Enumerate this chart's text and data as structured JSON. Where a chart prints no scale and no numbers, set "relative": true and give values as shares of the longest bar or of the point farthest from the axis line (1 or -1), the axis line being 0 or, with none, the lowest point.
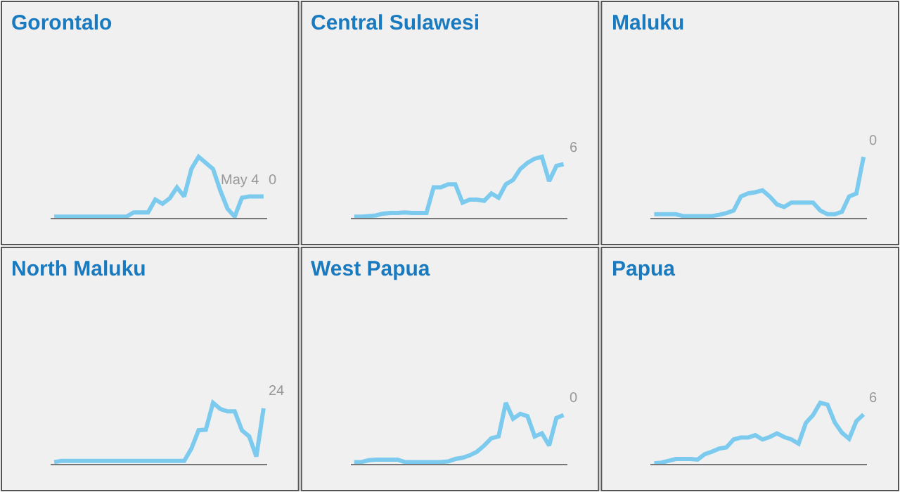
{
  "chart_data": [
    {
      "type": "line",
      "title": "Gorontalo",
      "relative": true,
      "categories": [
        null,
        null,
        null,
        null,
        null,
        null,
        null,
        null,
        null,
        null,
        null,
        null,
        null,
        null,
        null,
        null,
        null,
        null,
        null,
        null,
        null,
        null,
        null,
        null,
        null,
        null,
        null,
        null,
        null,
        null
      ],
      "annotations": [
        "May 4",
        "0"
      ],
      "series": [
        {
          "color": "#7ccbee",
          "values": [
            0.02,
            0.02,
            0.02,
            0.02,
            0.02,
            0.02,
            0.02,
            0.02,
            0.02,
            0.02,
            0.02,
            0.09,
            0.09,
            0.09,
            0.3,
            0.23,
            0.32,
            0.5,
            0.35,
            0.8,
            1,
            0.9,
            0.8,
            0.45,
            0.15,
            0.02,
            0.33,
            0.35,
            0.35,
            0.35
          ]
        }
      ]
    },
    {
      "type": "line",
      "title": "Central Sulawesi",
      "relative": true,
      "categories": [
        null,
        null,
        null,
        null,
        null,
        null,
        null,
        null,
        null,
        null,
        null,
        null,
        null,
        null,
        null,
        null,
        null,
        null,
        null,
        null,
        null,
        null,
        null,
        null,
        null,
        null,
        null,
        null,
        null,
        null
      ],
      "annotations": [
        "6"
      ],
      "series": [
        {
          "color": "#7ccbee",
          "values": [
            0.02,
            0.02,
            0.03,
            0.04,
            0.07,
            0.08,
            0.08,
            0.09,
            0.08,
            0.08,
            0.08,
            0.5,
            0.5,
            0.55,
            0.55,
            0.25,
            0.3,
            0.3,
            0.28,
            0.4,
            0.33,
            0.55,
            0.62,
            0.8,
            0.9,
            0.97,
            1,
            0.6,
            0.85,
            0.88
          ]
        }
      ]
    },
    {
      "type": "line",
      "title": "Maluku",
      "relative": true,
      "categories": [
        null,
        null,
        null,
        null,
        null,
        null,
        null,
        null,
        null,
        null,
        null,
        null,
        null,
        null,
        null,
        null,
        null,
        null,
        null,
        null,
        null,
        null,
        null,
        null,
        null,
        null,
        null,
        null,
        null,
        null
      ],
      "annotations": [
        "0"
      ],
      "series": [
        {
          "color": "#7ccbee",
          "values": [
            0.06,
            0.06,
            0.06,
            0.06,
            0.03,
            0.03,
            0.03,
            0.03,
            0.03,
            0.05,
            0.08,
            0.12,
            0.35,
            0.4,
            0.42,
            0.45,
            0.35,
            0.22,
            0.18,
            0.25,
            0.25,
            0.25,
            0.25,
            0.12,
            0.06,
            0.06,
            0.1,
            0.35,
            0.4,
            1
          ]
        }
      ]
    },
    {
      "type": "line",
      "title": "North Maluku",
      "relative": true,
      "categories": [
        null,
        null,
        null,
        null,
        null,
        null,
        null,
        null,
        null,
        null,
        null,
        null,
        null,
        null,
        null,
        null,
        null,
        null,
        null,
        null,
        null,
        null,
        null,
        null,
        null,
        null,
        null,
        null,
        null,
        null
      ],
      "annotations": [
        "24"
      ],
      "series": [
        {
          "color": "#7ccbee",
          "values": [
            0.03,
            0.05,
            0.05,
            0.05,
            0.05,
            0.05,
            0.05,
            0.05,
            0.05,
            0.05,
            0.05,
            0.05,
            0.05,
            0.05,
            0.05,
            0.05,
            0.05,
            0.05,
            0.05,
            0.25,
            0.55,
            0.56,
            1,
            0.9,
            0.86,
            0.86,
            0.55,
            0.45,
            0.12,
            0.91
          ]
        }
      ]
    },
    {
      "type": "line",
      "title": "West Papua",
      "relative": true,
      "categories": [
        null,
        null,
        null,
        null,
        null,
        null,
        null,
        null,
        null,
        null,
        null,
        null,
        null,
        null,
        null,
        null,
        null,
        null,
        null,
        null,
        null,
        null,
        null,
        null,
        null,
        null,
        null,
        null,
        null,
        null
      ],
      "annotations": [
        "0"
      ],
      "series": [
        {
          "color": "#7ccbee",
          "values": [
            0.03,
            0.03,
            0.06,
            0.07,
            0.07,
            0.07,
            0.07,
            0.03,
            0.03,
            0.03,
            0.03,
            0.03,
            0.03,
            0.04,
            0.08,
            0.1,
            0.14,
            0.2,
            0.3,
            0.42,
            0.45,
            1,
            0.74,
            0.82,
            0.78,
            0.45,
            0.5,
            0.3,
            0.75,
            0.8
          ]
        }
      ]
    },
    {
      "type": "line",
      "title": "Papua",
      "relative": true,
      "categories": [
        null,
        null,
        null,
        null,
        null,
        null,
        null,
        null,
        null,
        null,
        null,
        null,
        null,
        null,
        null,
        null,
        null,
        null,
        null,
        null,
        null,
        null,
        null,
        null,
        null,
        null,
        null,
        null,
        null,
        null
      ],
      "annotations": [
        "6"
      ],
      "series": [
        {
          "color": "#7ccbee",
          "values": [
            0.01,
            0.02,
            0.05,
            0.08,
            0.08,
            0.08,
            0.07,
            0.16,
            0.2,
            0.25,
            0.27,
            0.4,
            0.43,
            0.43,
            0.47,
            0.4,
            0.44,
            0.5,
            0.44,
            0.4,
            0.33,
            0.67,
            0.8,
            1,
            0.97,
            0.68,
            0.51,
            0.41,
            0.7,
            0.81
          ]
        }
      ]
    }
  ]
}
